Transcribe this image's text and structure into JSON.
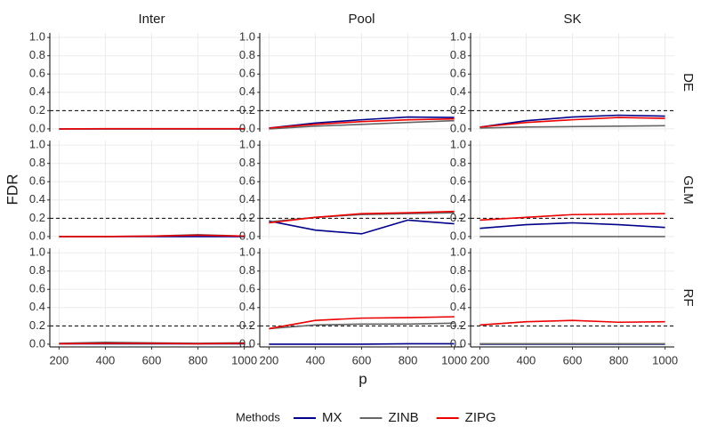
{
  "chart_data": {
    "type": "line",
    "x_label": "p",
    "y_label": "FDR",
    "legend_title": "Methods",
    "col_labels": [
      "Inter",
      "Pool",
      "SK"
    ],
    "row_labels": [
      "DE",
      "GLM",
      "RF"
    ],
    "methods": [
      {
        "name": "MX",
        "color": "#00008b"
      },
      {
        "name": "ZINB",
        "color": "#666666"
      },
      {
        "name": "ZIPG",
        "color": "#ee0000"
      }
    ],
    "x": [
      200,
      400,
      600,
      800,
      1000
    ],
    "xlim": [
      160,
      1040
    ],
    "xticks": [
      200,
      400,
      600,
      800,
      1000
    ],
    "ylim": [
      -0.03,
      1.05
    ],
    "yticks": [
      {
        "value": 0,
        "label": "0.0"
      },
      0.2,
      0.4,
      0.6,
      0.8,
      {
        "value": 1,
        "label": "1.0"
      }
    ],
    "reference_line": 0.2,
    "grid": true,
    "panels": [
      [
        {
          "series": [
            {
              "values": [
                0,
                0,
                0,
                0,
                0
              ]
            },
            {
              "values": [
                0,
                0,
                0,
                0,
                0
              ]
            },
            {
              "values": [
                0,
                0.002,
                0.002,
                0.002,
                0.002
              ]
            }
          ]
        },
        {
          "series": [
            {
              "values": [
                0.01,
                0.065,
                0.1,
                0.13,
                0.125
              ]
            },
            {
              "values": [
                0.0,
                0.03,
                0.05,
                0.07,
                0.09
              ]
            },
            {
              "values": [
                0.01,
                0.05,
                0.08,
                0.1,
                0.11
              ]
            }
          ]
        },
        {
          "series": [
            {
              "values": [
                0.02,
                0.09,
                0.13,
                0.15,
                0.14
              ]
            },
            {
              "values": [
                0.01,
                0.02,
                0.025,
                0.03,
                0.035
              ]
            },
            {
              "values": [
                0.02,
                0.07,
                0.1,
                0.125,
                0.115
              ]
            }
          ]
        }
      ],
      [
        {
          "series": [
            {
              "values": [
                0,
                0,
                0,
                0,
                0
              ]
            },
            {
              "values": [
                0,
                0,
                0.005,
                0.02,
                0.005
              ]
            },
            {
              "values": [
                0,
                0,
                0.005,
                0.015,
                0.005
              ]
            }
          ]
        },
        {
          "series": [
            {
              "values": [
                0.17,
                0.07,
                0.03,
                0.18,
                0.14
              ]
            },
            {
              "values": [
                0.16,
                0.21,
                0.24,
                0.25,
                0.26
              ]
            },
            {
              "values": [
                0.15,
                0.21,
                0.25,
                0.26,
                0.275
              ]
            }
          ]
        },
        {
          "series": [
            {
              "values": [
                0.09,
                0.13,
                0.15,
                0.13,
                0.1
              ]
            },
            {
              "values": [
                0,
                0,
                0,
                0,
                0
              ]
            },
            {
              "values": [
                0.18,
                0.21,
                0.24,
                0.245,
                0.25
              ]
            }
          ]
        }
      ],
      [
        {
          "series": [
            {
              "values": [
                0.005,
                0.005,
                0.005,
                0.005,
                0.005
              ]
            },
            {
              "values": [
                0.01,
                0.02,
                0.015,
                0.01,
                0.015
              ]
            },
            {
              "values": [
                0.005,
                0.01,
                0.01,
                0.005,
                0.01
              ]
            }
          ]
        },
        {
          "series": [
            {
              "values": [
                0,
                0,
                0,
                0.005,
                0.005
              ]
            },
            {
              "values": [
                0.17,
                0.21,
                0.22,
                0.22,
                0.23
              ]
            },
            {
              "values": [
                0.17,
                0.26,
                0.285,
                0.29,
                0.3
              ]
            }
          ]
        },
        {
          "series": [
            {
              "values": [
                0,
                0,
                0,
                0,
                0
              ]
            },
            {
              "values": [
                0.005,
                0.005,
                0.005,
                0.005,
                0.005
              ]
            },
            {
              "values": [
                0.21,
                0.245,
                0.26,
                0.24,
                0.245
              ]
            }
          ]
        }
      ]
    ]
  }
}
